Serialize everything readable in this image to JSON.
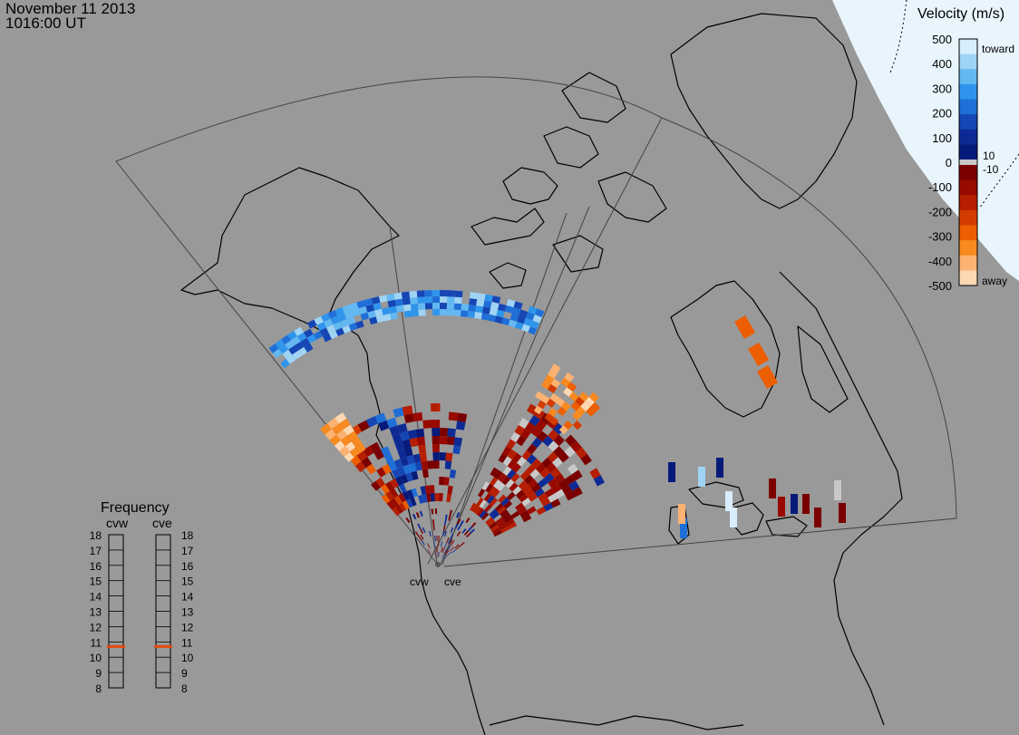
{
  "header": {
    "date": "November 11 2013",
    "time": "1016:00 UT"
  },
  "velocity_legend": {
    "title": "Velocity (m/s)",
    "ticks": [
      "500",
      "400",
      "300",
      "200",
      "100",
      "0",
      "-100",
      "-200",
      "-300",
      "-400",
      "-500"
    ],
    "toward_label": "toward",
    "away_label": "away",
    "plus_threshold": "10",
    "minus_threshold": "-10",
    "colors": {
      "toward": [
        "#d8eefc",
        "#9fd4f5",
        "#63b8f2",
        "#2f95ec",
        "#1f6fd8",
        "#1546b4",
        "#0d2a94",
        "#061a7a"
      ],
      "gray": "#c8c8c8",
      "away": [
        "#7a0000",
        "#980a00",
        "#b51e00",
        "#d33c00",
        "#ec5e00",
        "#f88a20",
        "#fcb272",
        "#fdd8b2"
      ]
    }
  },
  "frequency_panel": {
    "title": "Frequency",
    "stations": [
      "cvw",
      "cve"
    ],
    "scale": [
      "18",
      "17",
      "16",
      "15",
      "14",
      "13",
      "12",
      "11",
      "10",
      "9",
      "8"
    ],
    "cvw_freq_mhz": 10.7,
    "cve_freq_mhz": 10.7,
    "marker_color": "#e24a10"
  },
  "radar_sites": [
    "cvw",
    "cve"
  ],
  "map_colors": {
    "background": "#999999",
    "coast": "#000000",
    "fov": "#444444",
    "sunlit": "#e8f5fc"
  }
}
